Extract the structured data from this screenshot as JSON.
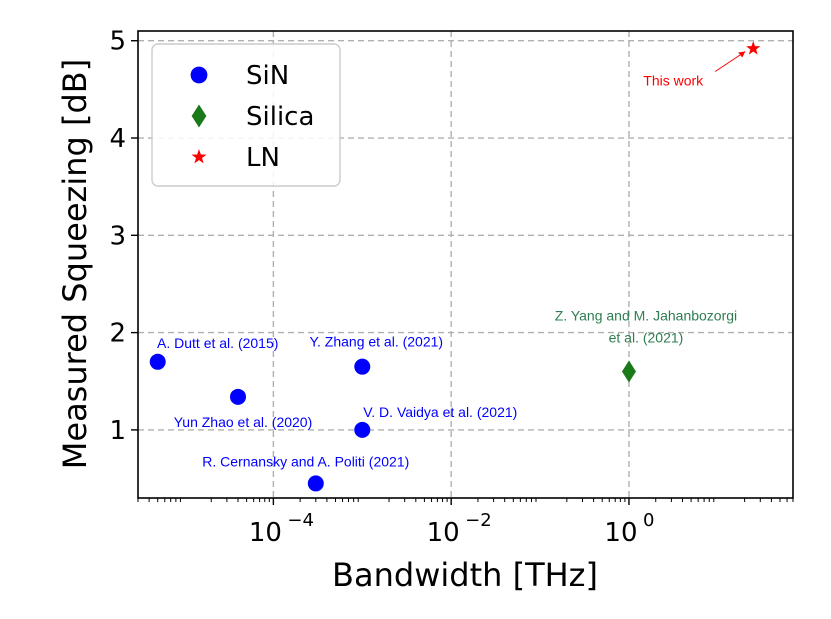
{
  "chart_data": {
    "type": "scatter",
    "xscale": "log",
    "xlim": [
      3e-06,
      70
    ],
    "ylim": [
      0.3,
      5.1
    ],
    "grid": true,
    "legend_location": "top-left",
    "xlabel": "Bandwidth [THz]",
    "ylabel": "Measured Squeezing [dB]",
    "x_ticks": [
      {
        "value": 0.0001,
        "base": "10",
        "exp": "−4"
      },
      {
        "value": 0.01,
        "base": "10",
        "exp": "−2"
      },
      {
        "value": 1,
        "base": "10",
        "exp": "0"
      }
    ],
    "y_ticks": [
      {
        "value": 1,
        "label": "1"
      },
      {
        "value": 2,
        "label": "2"
      },
      {
        "value": 3,
        "label": "3"
      },
      {
        "value": 4,
        "label": "4"
      },
      {
        "value": 5,
        "label": "5"
      }
    ],
    "series": [
      {
        "name": "SiN",
        "marker": "circle",
        "color": "#0000ff",
        "points": [
          {
            "x": 5e-06,
            "y": 1.7,
            "label": "A. Dutt et al. (2015)"
          },
          {
            "x": 4e-05,
            "y": 1.34,
            "label": "Yun Zhao et al. (2020)"
          },
          {
            "x": 0.0003,
            "y": 0.45,
            "label": "R. Cernansky and A. Politi (2021)"
          },
          {
            "x": 0.001,
            "y": 1.65,
            "label": "Y. Zhang et al. (2021)"
          },
          {
            "x": 0.001,
            "y": 1.0,
            "label": "V. D. Vaidya et al. (2021)"
          }
        ]
      },
      {
        "name": "Silica",
        "marker": "diamond",
        "color": "#1a7a1a",
        "points": [
          {
            "x": 1,
            "y": 1.6,
            "label_lines": [
              "Z. Yang and M. Jahanbozorgi",
              "et al. (2021)"
            ]
          }
        ]
      },
      {
        "name": "LN",
        "marker": "star",
        "color": "#ff0000",
        "points": [
          {
            "x": 25,
            "y": 4.92,
            "label": "This work"
          }
        ]
      }
    ]
  }
}
